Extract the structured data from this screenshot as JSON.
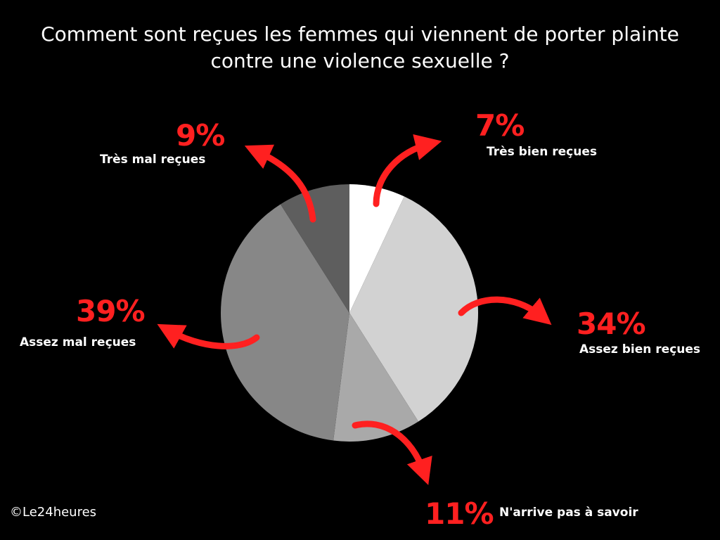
{
  "chart_data": {
    "type": "pie",
    "title_lines": [
      "Comment sont reçues les femmes qui viennent de porter plainte",
      "contre une violence sexuelle ?"
    ],
    "start": "top",
    "direction": "clockwise",
    "slices": [
      {
        "label": "Très bien reçues",
        "value": 7,
        "value_label": "7%",
        "color": "#ffffff"
      },
      {
        "label": "Assez bien reçues",
        "value": 34,
        "value_label": "34%",
        "color": "#d2d2d2"
      },
      {
        "label": "N'arrive pas à savoir",
        "value": 11,
        "value_label": "11%",
        "color": "#a9a9a9"
      },
      {
        "label": "Assez mal reçues",
        "value": 39,
        "value_label": "39%",
        "color": "#878787"
      },
      {
        "label": "Très mal reçues",
        "value": 9,
        "value_label": "9%",
        "color": "#5e5e5e"
      }
    ],
    "annotation_color": "#ff2020"
  },
  "credit": "©Le24heures"
}
